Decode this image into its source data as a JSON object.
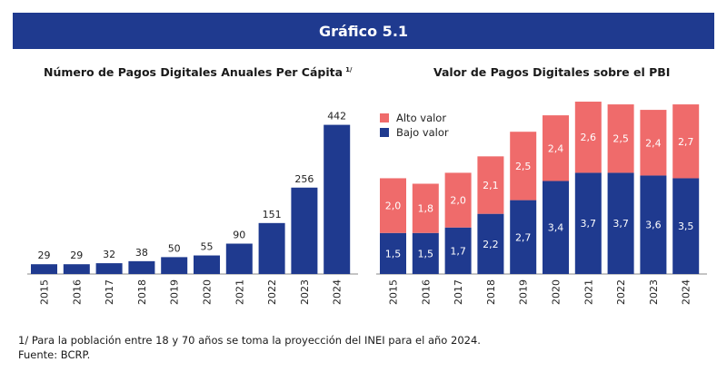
{
  "header": {
    "title": "Gráfico 5.1"
  },
  "colors": {
    "banner": "#1f3a8f",
    "bajo": "#1f3a8f",
    "alto": "#ef6b6b",
    "axis": "#888888"
  },
  "chart_data": [
    {
      "type": "bar",
      "title": "Número de Pagos Digitales Anuales Per Cápita",
      "title_note": "1/",
      "categories": [
        "2015",
        "2016",
        "2017",
        "2018",
        "2019",
        "2020",
        "2021",
        "2022",
        "2023",
        "2024"
      ],
      "values": [
        29,
        29,
        32,
        38,
        50,
        55,
        90,
        151,
        256,
        442
      ],
      "value_labels": [
        "29",
        "29",
        "32",
        "38",
        "50",
        "55",
        "90",
        "151",
        "256",
        "442"
      ],
      "ylim": [
        0,
        500
      ]
    },
    {
      "type": "bar",
      "stacked": true,
      "title": "Valor de Pagos Digitales sobre el PBI",
      "categories": [
        "2015",
        "2016",
        "2017",
        "2018",
        "2019",
        "2020",
        "2021",
        "2022",
        "2023",
        "2024"
      ],
      "series": [
        {
          "name": "Bajo valor",
          "values": [
            1.5,
            1.5,
            1.7,
            2.2,
            2.7,
            3.4,
            3.7,
            3.7,
            3.6,
            3.5
          ],
          "labels": [
            "1,5",
            "1,5",
            "1,7",
            "2,2",
            "2,7",
            "3,4",
            "3,7",
            "3,7",
            "3,6",
            "3,5"
          ]
        },
        {
          "name": "Alto valor",
          "values": [
            2.0,
            1.8,
            2.0,
            2.1,
            2.5,
            2.4,
            2.6,
            2.5,
            2.4,
            2.7
          ],
          "labels": [
            "2,0",
            "1,8",
            "2,0",
            "2,1",
            "2,5",
            "2,4",
            "2,6",
            "2,5",
            "2,4",
            "2,7"
          ]
        }
      ],
      "legend": "top-left",
      "ylim": [
        0,
        6.5
      ]
    }
  ],
  "footnotes": {
    "note": "1/ Para la población entre 18 y 70 años se toma la proyección del INEI para el año 2024.",
    "source": "Fuente: BCRP."
  }
}
